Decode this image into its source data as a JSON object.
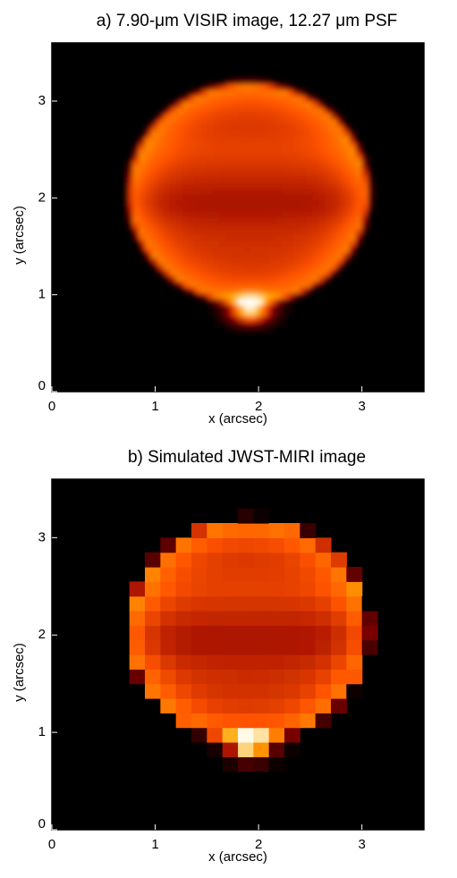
{
  "chart_data": [
    {
      "type": "image",
      "title": "a) 7.90-μm VISIR image, 12.27 μm PSF",
      "xlabel": "x (arcsec)",
      "ylabel": "y (arcsec)",
      "xlim": [
        0,
        3.6
      ],
      "ylim": [
        0,
        3.6
      ],
      "xticks": [
        0,
        1,
        2,
        3
      ],
      "yticks": [
        0,
        1,
        2,
        3
      ]
    },
    {
      "type": "image",
      "title": "b) Simulated JWST-MIRI image",
      "xlabel": "x (arcsec)",
      "ylabel": "y (arcsec)",
      "xlim": [
        0,
        3.6
      ],
      "ylim": [
        0,
        3.6
      ],
      "xticks": [
        0,
        1,
        2,
        3
      ],
      "yticks": [
        0,
        1,
        2,
        3
      ]
    }
  ]
}
